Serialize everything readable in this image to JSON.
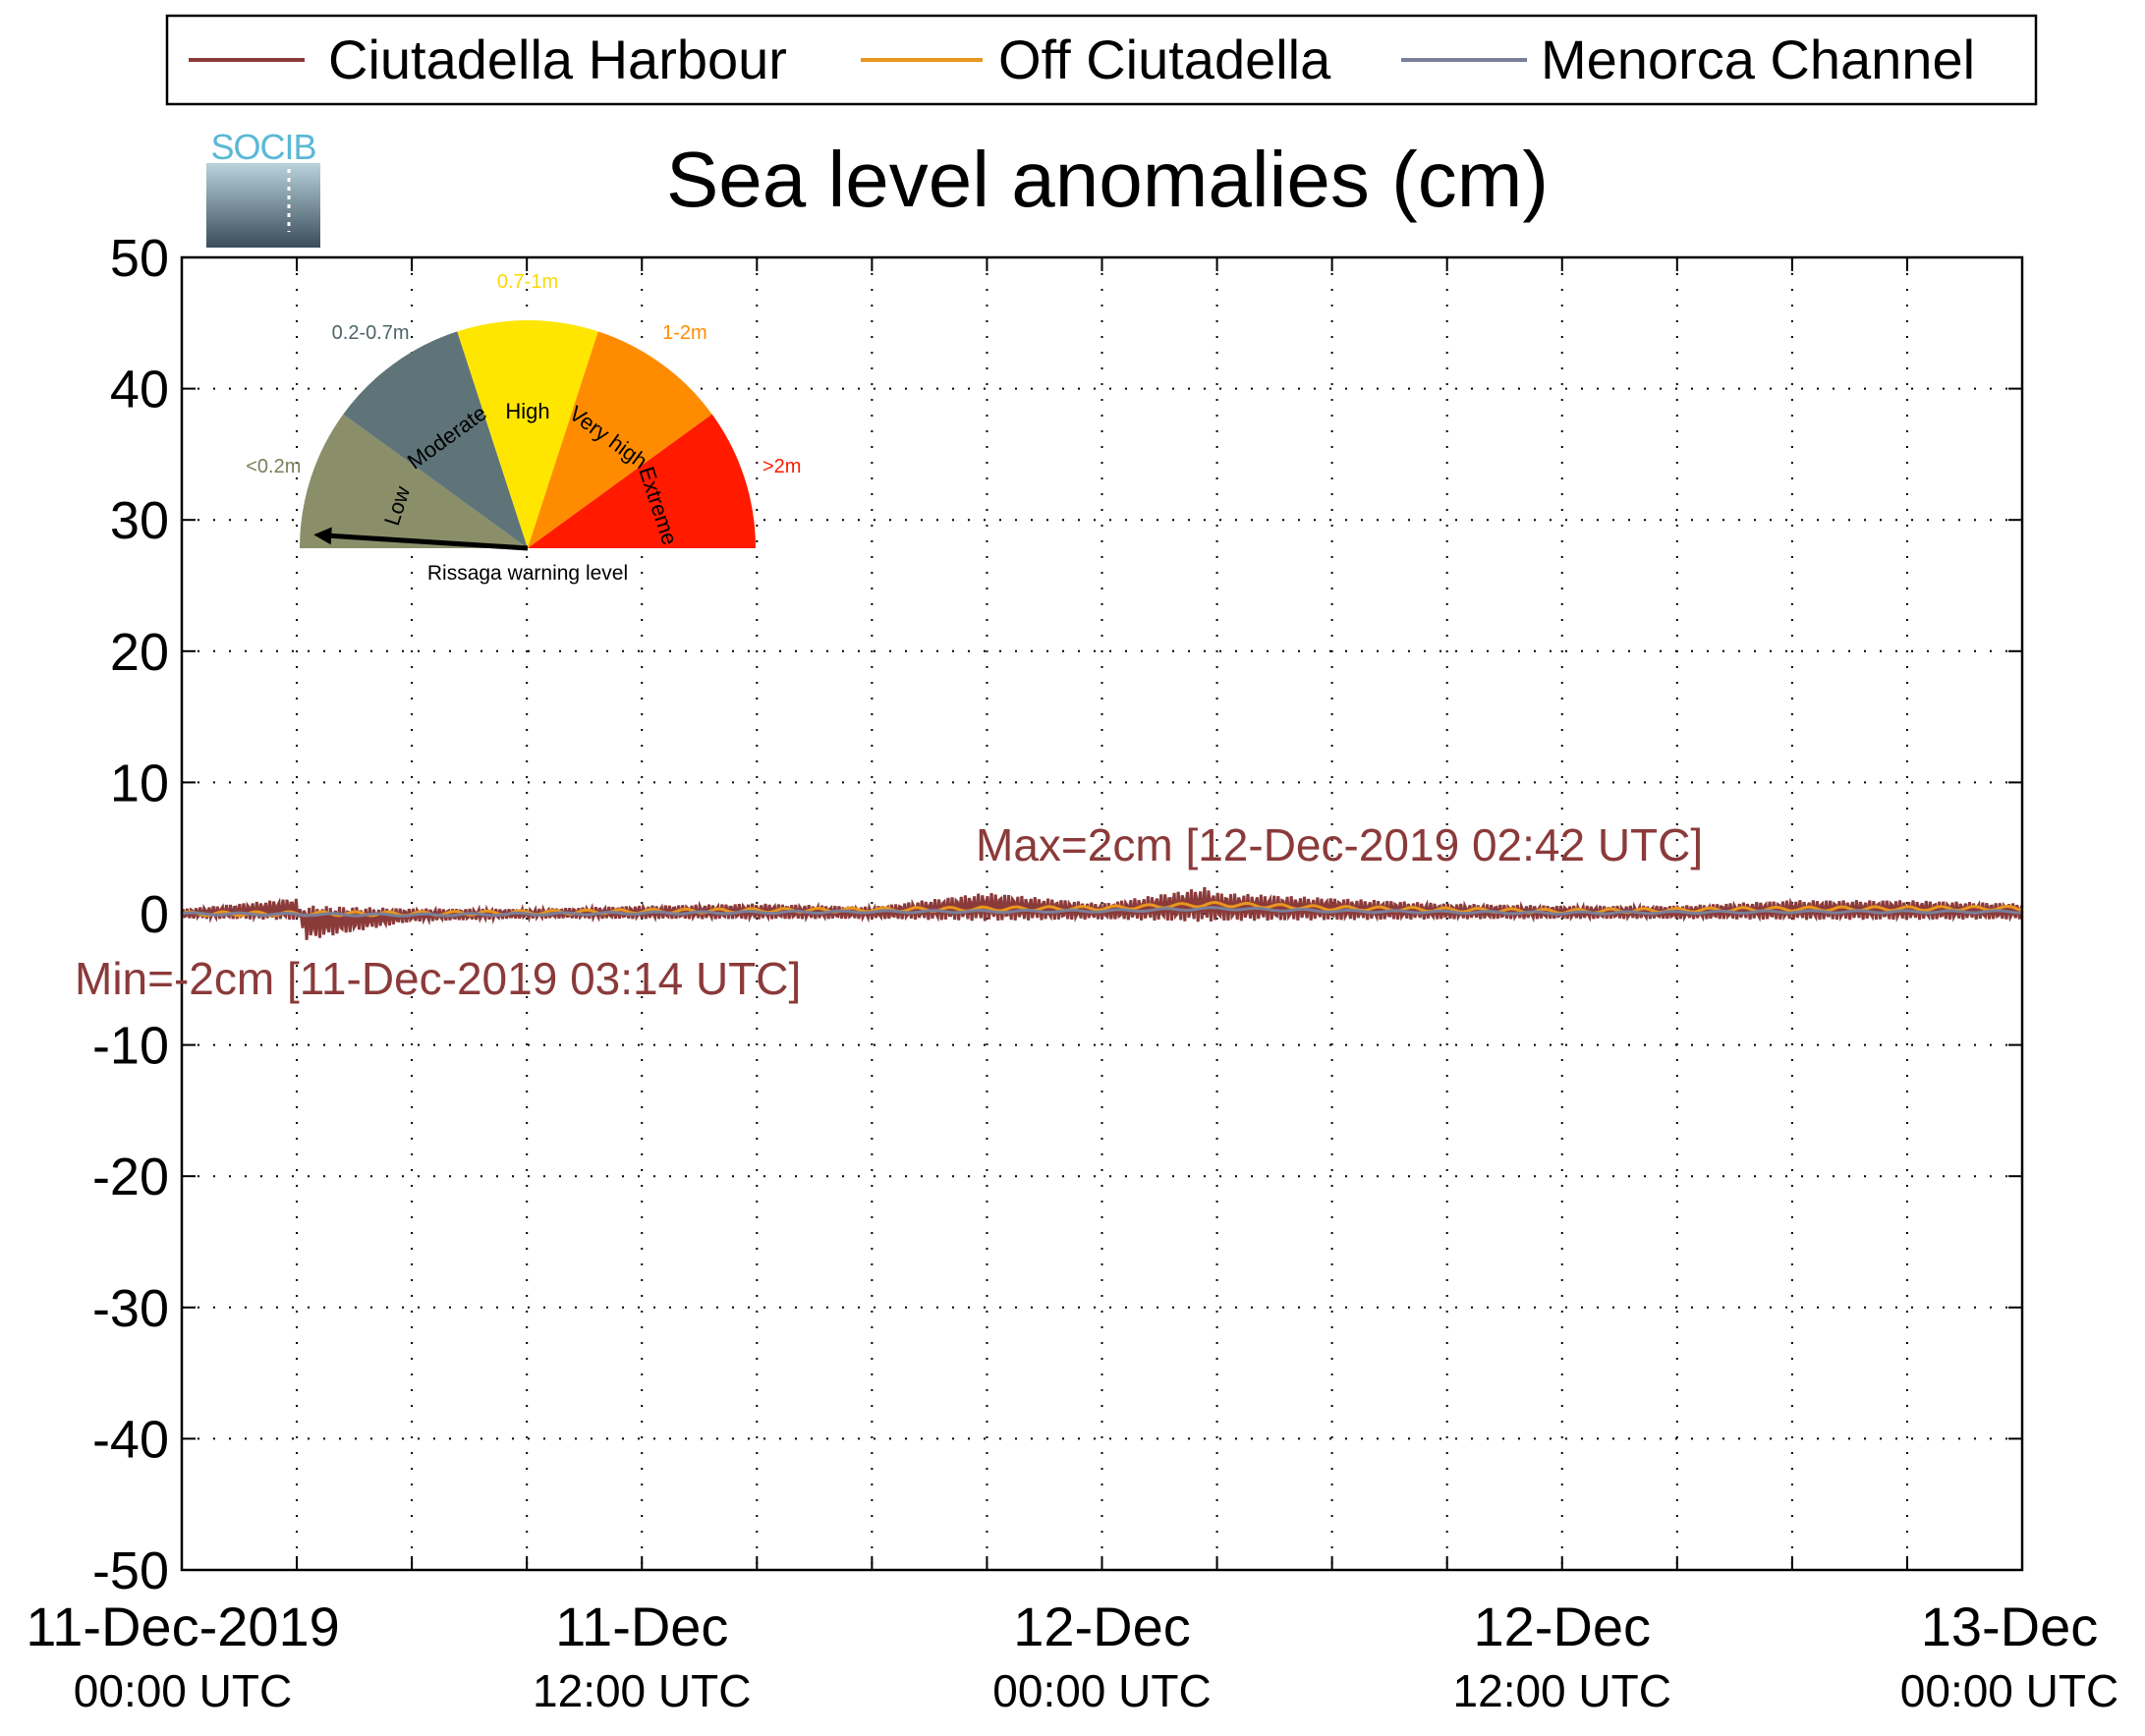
{
  "logo": {
    "text": "SOCIB",
    "colors": {
      "text": "#5bb8d6",
      "top": "#b9d3dc",
      "bottom": "#3a4d5a"
    }
  },
  "chart_data": {
    "type": "line",
    "title": "Sea level anomalies (cm)",
    "xlabel": "",
    "ylabel": "",
    "ylim": [
      -50,
      50
    ],
    "yticks": [
      50,
      40,
      30,
      20,
      10,
      0,
      -10,
      -20,
      -30,
      -40,
      -50
    ],
    "xlim": [
      "2019-12-11T00:00",
      "2019-12-13T00:00"
    ],
    "xtick_labels": [
      {
        "at": "2019-12-11T00:00",
        "line1": "11-Dec-2019",
        "line2": "00:00 UTC"
      },
      {
        "at": "2019-12-11T12:00",
        "line1": "11-Dec",
        "line2": "12:00 UTC"
      },
      {
        "at": "2019-12-12T00:00",
        "line1": "12-Dec",
        "line2": "00:00 UTC"
      },
      {
        "at": "2019-12-12T12:00",
        "line1": "12-Dec",
        "line2": "12:00 UTC"
      },
      {
        "at": "2019-12-13T00:00",
        "line1": "13-Dec",
        "line2": "00:00 UTC"
      }
    ],
    "grid": true,
    "legend_position": "top",
    "legend": [
      "Ciutadella Harbour",
      "Off Ciutadella",
      "Menorca Channel"
    ],
    "series": [
      {
        "name": "Ciutadella Harbour",
        "color": "#8b3a3a",
        "x": [
          "2019-12-11T00:00",
          "2019-12-11T03:00",
          "2019-12-11T03:14",
          "2019-12-11T06:00",
          "2019-12-11T09:00",
          "2019-12-11T12:00",
          "2019-12-11T15:00",
          "2019-12-11T18:00",
          "2019-12-11T21:00",
          "2019-12-12T00:00",
          "2019-12-12T02:42",
          "2019-12-12T03:00",
          "2019-12-12T06:00",
          "2019-12-12T09:00",
          "2019-12-12T12:00",
          "2019-12-12T15:00",
          "2019-12-12T18:00",
          "2019-12-12T21:00",
          "2019-12-13T00:00"
        ],
        "y": [
          0,
          1,
          -2,
          -0.3,
          0,
          0.3,
          0.5,
          0.2,
          1.5,
          0.5,
          2,
          1.5,
          1,
          0.5,
          0.3,
          0.3,
          0.8,
          0.8,
          0.5
        ]
      },
      {
        "name": "Off Ciutadella",
        "color": "#e8961e",
        "x": [
          "2019-12-11T00:00",
          "2019-12-11T06:00",
          "2019-12-11T12:00",
          "2019-12-11T18:00",
          "2019-12-12T00:00",
          "2019-12-12T03:00",
          "2019-12-12T06:00",
          "2019-12-12T12:00",
          "2019-12-12T18:00",
          "2019-12-13T00:00"
        ],
        "y": [
          0,
          0,
          0.3,
          0.5,
          0.7,
          1.2,
          0.7,
          0.3,
          0.6,
          0.7
        ]
      },
      {
        "name": "Menorca Channel",
        "color": "#7a7f99",
        "x": [
          "2019-12-11T00:00",
          "2019-12-11T06:00",
          "2019-12-11T12:00",
          "2019-12-11T18:00",
          "2019-12-12T00:00",
          "2019-12-12T03:00",
          "2019-12-12T06:00",
          "2019-12-12T12:00",
          "2019-12-12T18:00",
          "2019-12-13T00:00"
        ],
        "y": [
          0,
          -0.2,
          0.1,
          0.3,
          0.4,
          0.8,
          0.4,
          0.1,
          0.3,
          0.3
        ]
      }
    ],
    "annotations": [
      {
        "text": "Max=2cm [12-Dec-2019 02:42 UTC]",
        "color": "#8b3a3a"
      },
      {
        "text": "Min=-2cm [11-Dec-2019 03:14 UTC]",
        "color": "#8b3a3a"
      }
    ],
    "gauge": {
      "caption": "Rissaga warning level",
      "level": "Low",
      "sectors": [
        {
          "label": "Low",
          "range": "<0.2m",
          "color": "#8a8f6a"
        },
        {
          "label": "Moderate",
          "range": "0.2-0.7m",
          "color": "#5e7478"
        },
        {
          "label": "High",
          "range": "0.7-1m",
          "color": "#ffe600"
        },
        {
          "label": "Very high",
          "range": "1-2m",
          "color": "#ff8c00"
        },
        {
          "label": "Extreme",
          "range": ">2m",
          "color": "#ff1a00"
        }
      ]
    }
  }
}
